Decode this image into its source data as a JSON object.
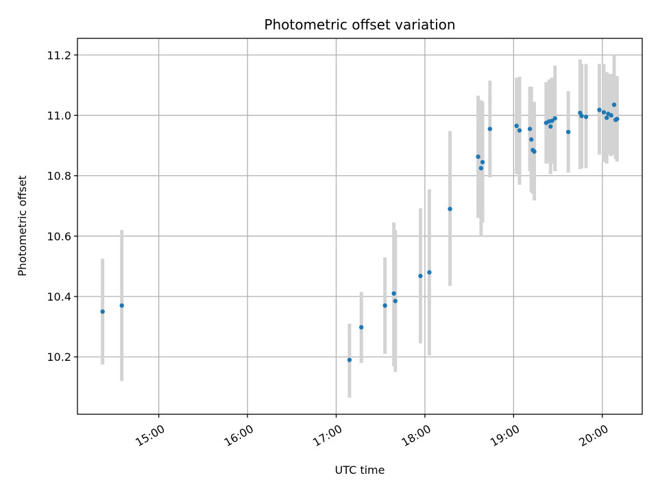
{
  "chart_data": {
    "type": "scatter",
    "title": "Photometric offset variation",
    "xlabel": "UTC time",
    "ylabel": "Photometric offset",
    "x_unit": "time of day (UTC)",
    "xlim": [
      "14:05",
      "20:27"
    ],
    "ylim": [
      10.01,
      11.255
    ],
    "x_ticks": [
      "15:00",
      "16:00",
      "17:00",
      "18:00",
      "19:00",
      "20:00"
    ],
    "y_ticks": [
      "10.2",
      "10.4",
      "10.6",
      "10.8",
      "11.0",
      "11.2"
    ],
    "grid": true,
    "legend": "none",
    "colors": {
      "point": "#1f77b4",
      "error_bar": "#d3d3d3"
    },
    "points": [
      {
        "x": "14:22",
        "y": 10.35,
        "err_low": 10.175,
        "err_high": 10.525
      },
      {
        "x": "14:35",
        "y": 10.37,
        "err_low": 10.12,
        "err_high": 10.62
      },
      {
        "x": "17:09",
        "y": 10.19,
        "err_low": 10.065,
        "err_high": 10.31
      },
      {
        "x": "17:17",
        "y": 10.298,
        "err_low": 10.18,
        "err_high": 10.415
      },
      {
        "x": "17:33",
        "y": 10.37,
        "err_low": 10.21,
        "err_high": 10.53
      },
      {
        "x": "17:39",
        "y": 10.41,
        "err_low": 10.17,
        "err_high": 10.645
      },
      {
        "x": "17:40",
        "y": 10.385,
        "err_low": 10.15,
        "err_high": 10.62
      },
      {
        "x": "17:57",
        "y": 10.468,
        "err_low": 10.245,
        "err_high": 10.692
      },
      {
        "x": "18:03",
        "y": 10.48,
        "err_low": 10.205,
        "err_high": 10.755
      },
      {
        "x": "18:17",
        "y": 10.69,
        "err_low": 10.435,
        "err_high": 10.948
      },
      {
        "x": "18:36",
        "y": 10.863,
        "err_low": 10.66,
        "err_high": 11.065
      },
      {
        "x": "18:38",
        "y": 10.825,
        "err_low": 10.6,
        "err_high": 11.05
      },
      {
        "x": "18:39",
        "y": 10.845,
        "err_low": 10.645,
        "err_high": 11.045
      },
      {
        "x": "18:44",
        "y": 10.955,
        "err_low": 10.795,
        "err_high": 11.115
      },
      {
        "x": "19:02",
        "y": 10.965,
        "err_low": 10.805,
        "err_high": 11.125
      },
      {
        "x": "19:04",
        "y": 10.95,
        "err_low": 10.77,
        "err_high": 11.128
      },
      {
        "x": "19:11",
        "y": 10.955,
        "err_low": 10.815,
        "err_high": 11.095
      },
      {
        "x": "19:12",
        "y": 10.92,
        "err_low": 10.745,
        "err_high": 11.095
      },
      {
        "x": "19:13",
        "y": 10.885,
        "err_low": 10.74,
        "err_high": 11.03
      },
      {
        "x": "19:14",
        "y": 10.88,
        "err_low": 10.718,
        "err_high": 11.045
      },
      {
        "x": "19:22",
        "y": 10.975,
        "err_low": 10.84,
        "err_high": 11.11
      },
      {
        "x": "19:24",
        "y": 10.98,
        "err_low": 10.842,
        "err_high": 11.118
      },
      {
        "x": "19:25",
        "y": 10.963,
        "err_low": 10.805,
        "err_high": 11.12
      },
      {
        "x": "19:26",
        "y": 10.982,
        "err_low": 10.84,
        "err_high": 11.125
      },
      {
        "x": "19:28",
        "y": 10.99,
        "err_low": 10.815,
        "err_high": 11.165
      },
      {
        "x": "19:37",
        "y": 10.945,
        "err_low": 10.81,
        "err_high": 11.08
      },
      {
        "x": "19:45",
        "y": 11.008,
        "err_low": 10.822,
        "err_high": 11.185
      },
      {
        "x": "19:46",
        "y": 10.998,
        "err_low": 10.825,
        "err_high": 11.17
      },
      {
        "x": "19:49",
        "y": 10.995,
        "err_low": 10.825,
        "err_high": 11.17
      },
      {
        "x": "19:58",
        "y": 11.018,
        "err_low": 10.87,
        "err_high": 11.17
      },
      {
        "x": "20:01",
        "y": 11.01,
        "err_low": 10.845,
        "err_high": 11.17
      },
      {
        "x": "20:03",
        "y": 10.992,
        "err_low": 10.84,
        "err_high": 11.143
      },
      {
        "x": "20:04",
        "y": 11.005,
        "err_low": 10.87,
        "err_high": 11.138
      },
      {
        "x": "20:06",
        "y": 11.0,
        "err_low": 10.865,
        "err_high": 11.137
      },
      {
        "x": "20:08",
        "y": 11.035,
        "err_low": 10.87,
        "err_high": 11.2
      },
      {
        "x": "20:09",
        "y": 10.985,
        "err_low": 10.855,
        "err_high": 11.115
      },
      {
        "x": "20:10",
        "y": 10.988,
        "err_low": 10.847,
        "err_high": 11.13
      }
    ]
  }
}
